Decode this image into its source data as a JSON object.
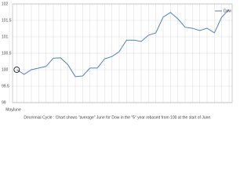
{
  "chart_data": {
    "type": "line",
    "caption": "Decennial Cycle : Chart shows \"average\" June for Dow in the \"5\" year rebased from 100 at the start of June.",
    "categories": [
      "May",
      "June",
      null,
      null,
      null,
      null,
      null,
      null,
      null,
      null,
      null,
      null,
      null,
      null,
      null,
      null,
      null,
      null,
      null,
      null,
      null,
      null,
      null,
      null,
      null,
      null,
      null,
      null,
      null,
      null,
      null
    ],
    "series": [
      {
        "name": "Dow",
        "color": "#4f81bd",
        "values": [
          null,
          100.0,
          99.86,
          100.0,
          100.05,
          100.1,
          100.35,
          100.36,
          100.15,
          99.79,
          99.81,
          100.05,
          100.05,
          100.33,
          100.4,
          100.55,
          100.9,
          100.9,
          100.86,
          101.05,
          101.12,
          101.6,
          101.74,
          101.55,
          101.29,
          101.26,
          101.19,
          101.26,
          101.12,
          101.6,
          101.83
        ]
      }
    ],
    "ylim": [
      99,
      102
    ],
    "yticks": [
      99,
      99.5,
      100,
      100.5,
      101,
      101.5,
      102
    ],
    "grid": true,
    "legend": "top-right"
  }
}
